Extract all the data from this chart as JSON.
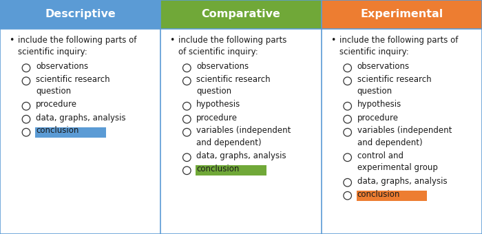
{
  "headers": [
    "Descriptive",
    "Comparative",
    "Experimental"
  ],
  "header_colors": [
    "#5B9BD5",
    "#70A838",
    "#ED7D31"
  ],
  "header_text_color": "#FFFFFF",
  "body_bg": "#FFFFFF",
  "border_color": "#5B9BD5",
  "title_fontsize": 11.5,
  "body_fontsize": 8.5,
  "hl_blue": "#5B9BD5",
  "hl_green": "#70A838",
  "hl_orange": "#ED7D31",
  "col1_items": [
    {
      "type": "bullet",
      "lines": [
        "include the following parts of",
        "scientific inquiry:"
      ]
    },
    {
      "type": "sub",
      "lines": [
        "observations"
      ],
      "hl": null
    },
    {
      "type": "sub",
      "lines": [
        "scientific research",
        "question"
      ],
      "hl": null
    },
    {
      "type": "sub",
      "lines": [
        "procedure"
      ],
      "hl": null
    },
    {
      "type": "sub",
      "lines": [
        "data, graphs, analysis"
      ],
      "hl": null
    },
    {
      "type": "sub",
      "lines": [
        "conclusion"
      ],
      "hl": "blue"
    }
  ],
  "col2_items": [
    {
      "type": "bullet",
      "lines": [
        "include the following parts",
        "of scientific inquiry:"
      ]
    },
    {
      "type": "sub",
      "lines": [
        "observations"
      ],
      "hl": null
    },
    {
      "type": "sub",
      "lines": [
        "scientific research",
        "question"
      ],
      "hl": null
    },
    {
      "type": "sub",
      "lines": [
        "hypothesis"
      ],
      "hl": null
    },
    {
      "type": "sub",
      "lines": [
        "procedure"
      ],
      "hl": null
    },
    {
      "type": "sub",
      "lines": [
        "variables (independent",
        "and dependent)"
      ],
      "hl": null
    },
    {
      "type": "sub",
      "lines": [
        "data, graphs, analysis"
      ],
      "hl": null
    },
    {
      "type": "sub",
      "lines": [
        "conclusion"
      ],
      "hl": "green"
    }
  ],
  "col3_items": [
    {
      "type": "bullet",
      "lines": [
        "include the following parts of",
        "scientific inquiry:"
      ]
    },
    {
      "type": "sub",
      "lines": [
        "observations"
      ],
      "hl": null
    },
    {
      "type": "sub",
      "lines": [
        "scientific research",
        "question"
      ],
      "hl": null
    },
    {
      "type": "sub",
      "lines": [
        "hypothesis"
      ],
      "hl": null
    },
    {
      "type": "sub",
      "lines": [
        "procedure"
      ],
      "hl": null
    },
    {
      "type": "sub",
      "lines": [
        "variables (independent",
        "and dependent)"
      ],
      "hl": null
    },
    {
      "type": "sub",
      "lines": [
        "control and",
        "experimental group"
      ],
      "hl": null
    },
    {
      "type": "sub",
      "lines": [
        "data, graphs, analysis"
      ],
      "hl": null
    },
    {
      "type": "sub",
      "lines": [
        "conclusion"
      ],
      "hl": "orange"
    }
  ]
}
